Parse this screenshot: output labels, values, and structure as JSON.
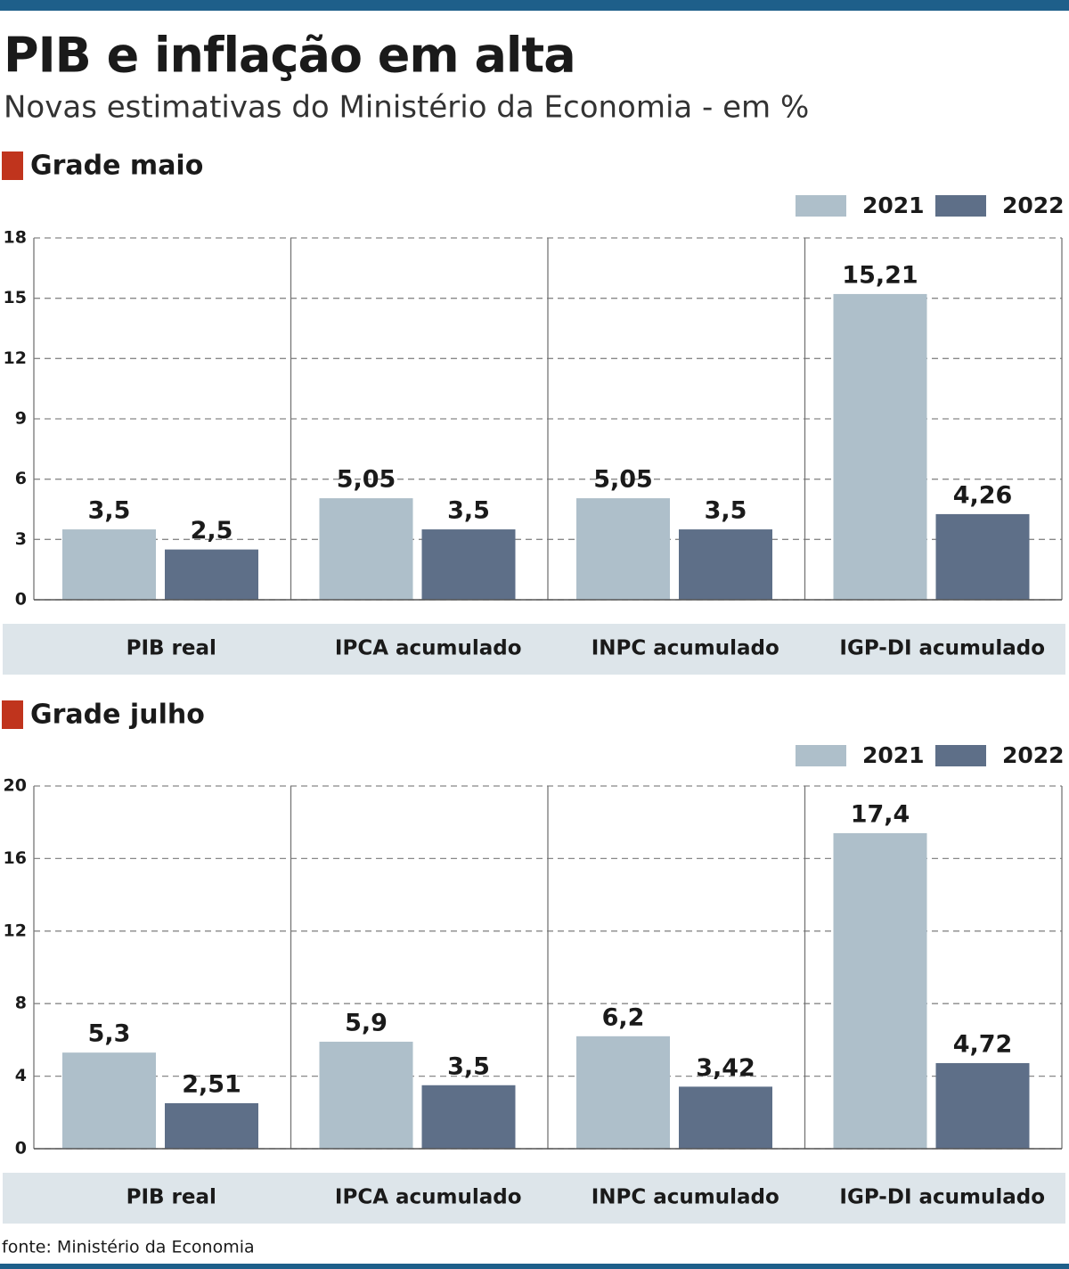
{
  "title": "PIB e inflação em alta",
  "subtitle": "Novas estimativas do Ministério da Economia - em %",
  "source": "fonte: Ministério da Economia",
  "chart_data": [
    {
      "type": "bar",
      "title": "Grade maio",
      "categories": [
        "PIB real",
        "IPCA acumulado",
        "INPC acumulado",
        "IGP-DI acumulado"
      ],
      "series": [
        {
          "name": "2021",
          "color": "#aebfca",
          "values": [
            3.5,
            5.05,
            5.05,
            15.21
          ],
          "value_labels": [
            "3,5",
            "5,05",
            "5,05",
            "15,21"
          ]
        },
        {
          "name": "2022",
          "color": "#5e6f88",
          "values": [
            2.5,
            3.5,
            3.5,
            4.26
          ],
          "value_labels": [
            "2,5",
            "3,5",
            "3,5",
            "4,26"
          ]
        }
      ],
      "ylim": [
        0,
        18
      ],
      "yticks": [
        0,
        3,
        6,
        9,
        12,
        15,
        18
      ],
      "grid": true
    },
    {
      "type": "bar",
      "title": "Grade julho",
      "categories": [
        "PIB real",
        "IPCA acumulado",
        "INPC acumulado",
        "IGP-DI acumulado"
      ],
      "series": [
        {
          "name": "2021",
          "color": "#aebfca",
          "values": [
            5.3,
            5.9,
            6.2,
            17.4
          ],
          "value_labels": [
            "5,3",
            "5,9",
            "6,2",
            "17,4"
          ]
        },
        {
          "name": "2022",
          "color": "#5e6f88",
          "values": [
            2.51,
            3.5,
            3.42,
            4.72
          ],
          "value_labels": [
            "2,51",
            "3,5",
            "3,42",
            "4,72"
          ]
        }
      ],
      "ylim": [
        0,
        20
      ],
      "yticks": [
        0,
        4,
        8,
        12,
        16,
        20
      ],
      "grid": true
    }
  ]
}
